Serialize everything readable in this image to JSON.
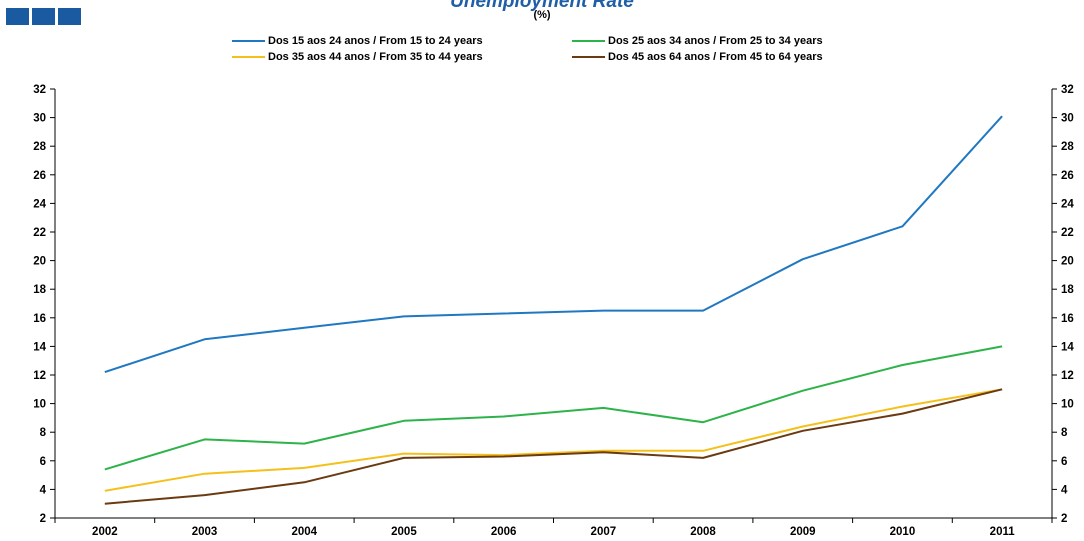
{
  "header": {
    "title": "Unemployment Rate",
    "subtitle": "(%)"
  },
  "colors": {
    "brand": "#1a5aa0",
    "title": "#1f5fa6"
  },
  "chart_data": {
    "type": "line",
    "title": "Unemployment Rate",
    "subtitle": "(%)",
    "xlabel": "",
    "ylabel": "",
    "x": [
      "2002",
      "2003",
      "2004",
      "2005",
      "2006",
      "2007",
      "2008",
      "2009",
      "2010",
      "2011"
    ],
    "ylim": [
      2,
      32
    ],
    "yticks": [
      2,
      4,
      6,
      8,
      10,
      12,
      14,
      16,
      18,
      20,
      22,
      24,
      26,
      28,
      30,
      32
    ],
    "grid": false,
    "legend_position": "top",
    "series": [
      {
        "name": "Dos 15 aos 24 anos / From 15 to 24 years",
        "color": "#1f78c1",
        "values": [
          12.2,
          14.5,
          15.3,
          16.1,
          16.3,
          16.5,
          16.5,
          20.1,
          22.4,
          30.1
        ]
      },
      {
        "name": "Dos 25 aos 34 anos / From 25 to 34 years",
        "color": "#2db34a",
        "values": [
          5.4,
          7.5,
          7.2,
          8.8,
          9.1,
          9.7,
          8.7,
          10.9,
          12.7,
          14.0
        ]
      },
      {
        "name": "Dos 35 aos 44 anos / From 35 to 44 years",
        "color": "#f5c01a",
        "values": [
          3.9,
          5.1,
          5.5,
          6.5,
          6.4,
          6.7,
          6.7,
          8.4,
          9.8,
          11.0
        ]
      },
      {
        "name": "Dos 45 aos 64 anos / From 45 to 64 years",
        "color": "#6b3a10",
        "values": [
          3.0,
          3.6,
          4.5,
          6.2,
          6.3,
          6.6,
          6.2,
          8.1,
          9.3,
          11.0
        ]
      }
    ]
  }
}
